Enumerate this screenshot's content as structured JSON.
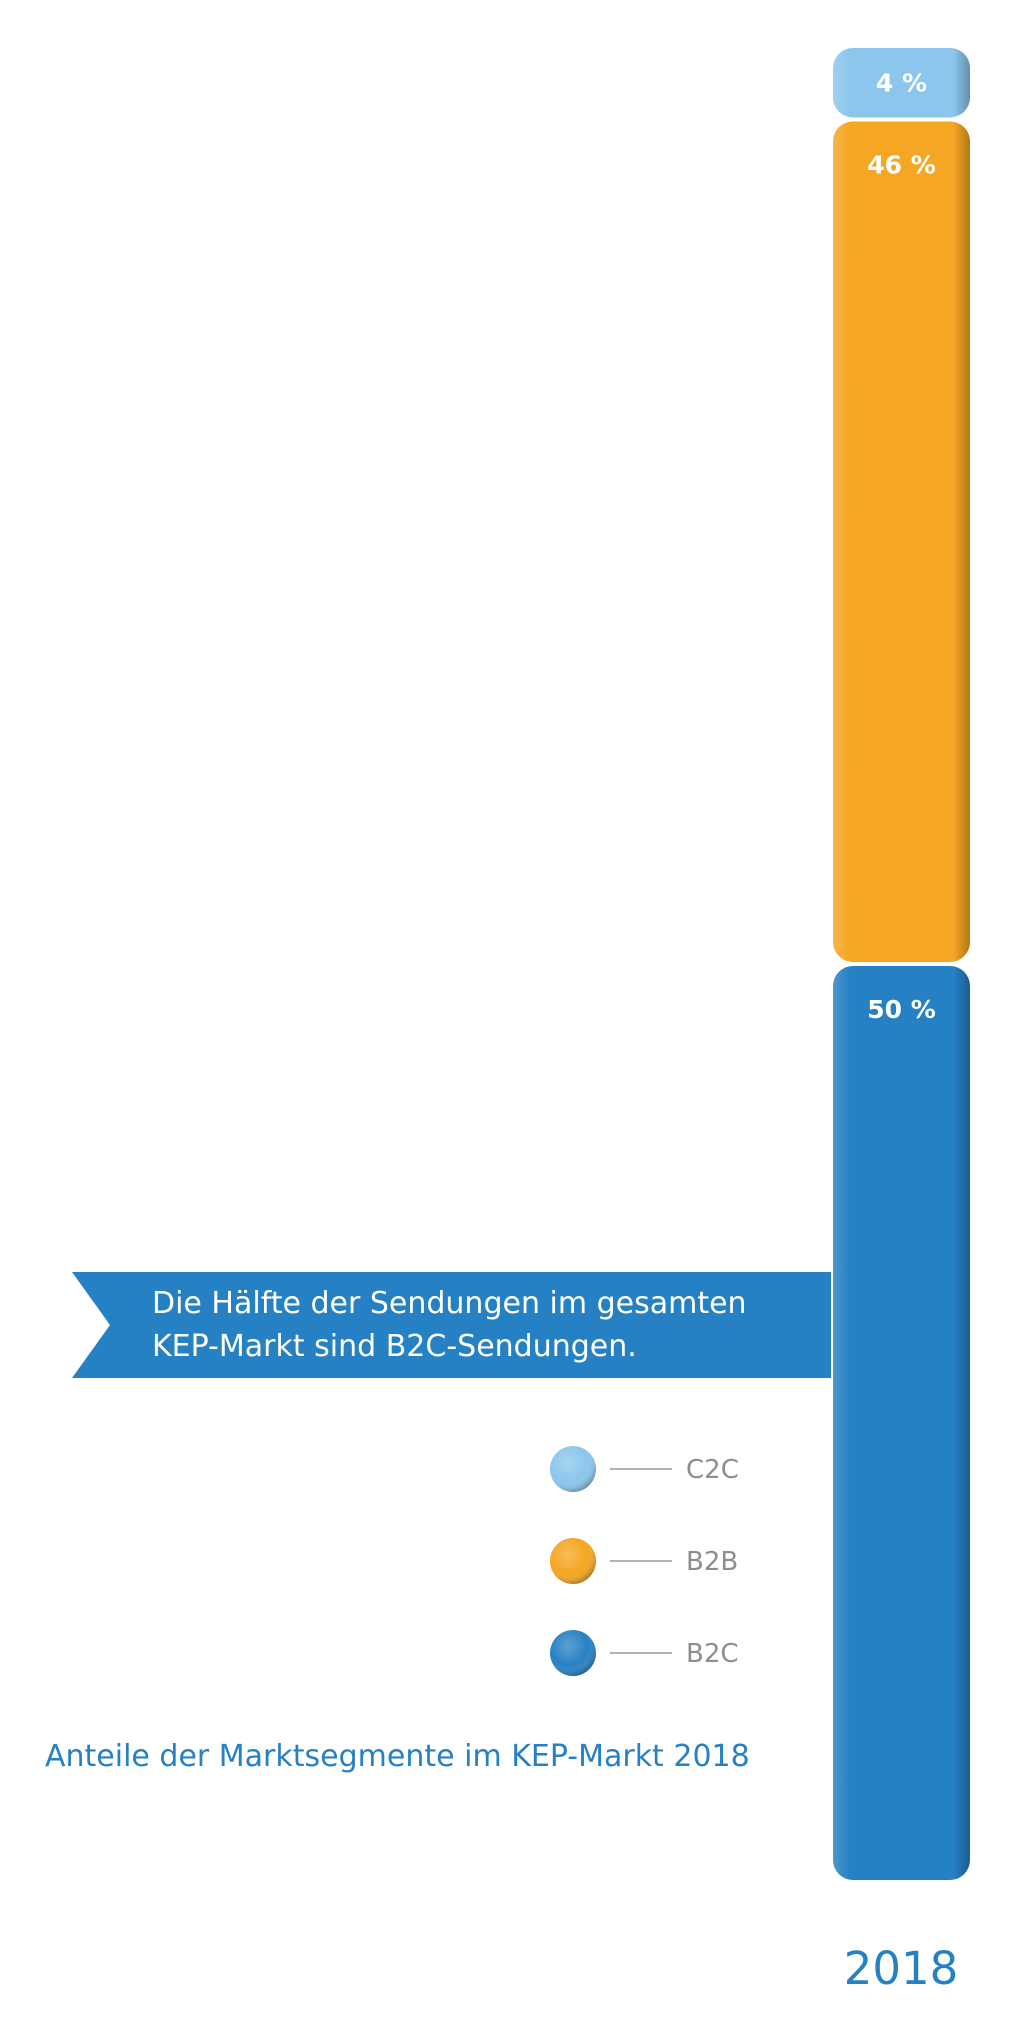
{
  "chart_data": {
    "type": "bar",
    "stacked": true,
    "categories": [
      "2018"
    ],
    "series": [
      {
        "name": "B2C",
        "values": [
          50
        ],
        "label": "50 %",
        "color": "#2681c4"
      },
      {
        "name": "B2B",
        "values": [
          46
        ],
        "label": "46 %",
        "color": "#f5a623"
      },
      {
        "name": "C2C",
        "values": [
          4
        ],
        "label": "4 %",
        "color": "#8cc6ec"
      }
    ],
    "ylim": [
      0,
      100
    ],
    "legend": {
      "position": "left",
      "order": [
        "C2C",
        "B2B",
        "B2C"
      ]
    },
    "title": "Anteile der Marktsegmente im KEP-Markt 2018",
    "annotation": {
      "line1": "Die Hälfte der Sendungen im gesamten",
      "line2": "KEP-Markt sind B2C-Sendungen."
    },
    "xlabel": "",
    "ylabel": "",
    "grid": false
  }
}
